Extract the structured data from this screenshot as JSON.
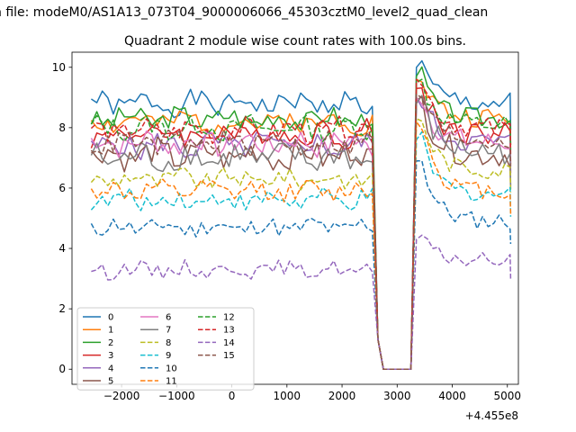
{
  "suptitle": "n file: modeM0/AS1A13_073T04_9000006066_45303cztM0_level2_quad_clean",
  "chart_data": {
    "type": "line",
    "title": "Quadrant 2 module wise count rates with 100.0s bins.",
    "xlabel": "",
    "ylabel": "",
    "x_offset_label": "+4.455e8",
    "xlim": [
      -2900,
      5200
    ],
    "ylim": [
      -0.5,
      10.5
    ],
    "x_ticks": [
      -2000,
      -1000,
      0,
      1000,
      2000,
      3000,
      4000,
      5000
    ],
    "x_tick_labels": [
      "−2000",
      "−1000",
      "0",
      "1000",
      "2000",
      "3000",
      "4000",
      "5000"
    ],
    "y_ticks": [
      0,
      2,
      4,
      6,
      8,
      10
    ],
    "y_tick_labels": [
      "0",
      "2",
      "4",
      "6",
      "8",
      "10"
    ],
    "grid": false,
    "legend_placement": "lower-left",
    "x_start": -2550,
    "x_step": 100,
    "gap": [
      2700,
      3200
    ],
    "series": [
      {
        "name": "0",
        "color": "#1f77b4",
        "dash": "solid",
        "base": 8.8,
        "after": 8.8,
        "peak": 10.0,
        "amp": 0.35,
        "seed": 1
      },
      {
        "name": "1",
        "color": "#ff7f0e",
        "dash": "solid",
        "base": 8.2,
        "after": 8.3,
        "peak": 9.6,
        "amp": 0.35,
        "seed": 2
      },
      {
        "name": "2",
        "color": "#2ca02c",
        "dash": "solid",
        "base": 8.3,
        "after": 8.3,
        "peak": 9.7,
        "amp": 0.35,
        "seed": 3
      },
      {
        "name": "3",
        "color": "#d62728",
        "dash": "solid",
        "base": 7.8,
        "after": 7.8,
        "peak": 9.3,
        "amp": 0.4,
        "seed": 4
      },
      {
        "name": "4",
        "color": "#9467bd",
        "dash": "solid",
        "base": 7.4,
        "after": 7.5,
        "peak": 9.0,
        "amp": 0.4,
        "seed": 5
      },
      {
        "name": "5",
        "color": "#8c564b",
        "dash": "solid",
        "base": 7.1,
        "after": 7.1,
        "peak": 8.9,
        "amp": 0.45,
        "seed": 6
      },
      {
        "name": "6",
        "color": "#e377c2",
        "dash": "solid",
        "base": 7.5,
        "after": 7.5,
        "peak": 9.0,
        "amp": 0.4,
        "seed": 7
      },
      {
        "name": "7",
        "color": "#7f7f7f",
        "dash": "solid",
        "base": 7.0,
        "after": 7.2,
        "peak": 8.8,
        "amp": 0.45,
        "seed": 8
      },
      {
        "name": "8",
        "color": "#bcbd22",
        "dash": "dashed",
        "base": 6.3,
        "after": 6.6,
        "peak": 8.3,
        "amp": 0.3,
        "seed": 9
      },
      {
        "name": "9",
        "color": "#17becf",
        "dash": "dashed",
        "base": 5.6,
        "after": 5.8,
        "peak": 7.6,
        "amp": 0.3,
        "seed": 10
      },
      {
        "name": "10",
        "color": "#1f77b4",
        "dash": "dashed",
        "base": 4.7,
        "after": 4.9,
        "peak": 6.9,
        "amp": 0.3,
        "seed": 11
      },
      {
        "name": "11",
        "color": "#ff7f0e",
        "dash": "dashed",
        "base": 5.9,
        "after": 5.9,
        "peak": 8.2,
        "amp": 0.3,
        "seed": 12
      },
      {
        "name": "12",
        "color": "#2ca02c",
        "dash": "dashed",
        "base": 8.0,
        "after": 8.1,
        "peak": 9.5,
        "amp": 0.35,
        "seed": 13
      },
      {
        "name": "13",
        "color": "#d62728",
        "dash": "dashed",
        "base": 7.9,
        "after": 8.0,
        "peak": 9.6,
        "amp": 0.35,
        "seed": 14
      },
      {
        "name": "14",
        "color": "#9467bd",
        "dash": "dashed",
        "base": 3.3,
        "after": 3.6,
        "peak": 4.3,
        "amp": 0.25,
        "seed": 15
      },
      {
        "name": "15",
        "color": "#8c564b",
        "dash": "dashed",
        "base": 7.5,
        "after": 7.6,
        "peak": 9.1,
        "amp": 0.35,
        "seed": 16
      }
    ]
  }
}
